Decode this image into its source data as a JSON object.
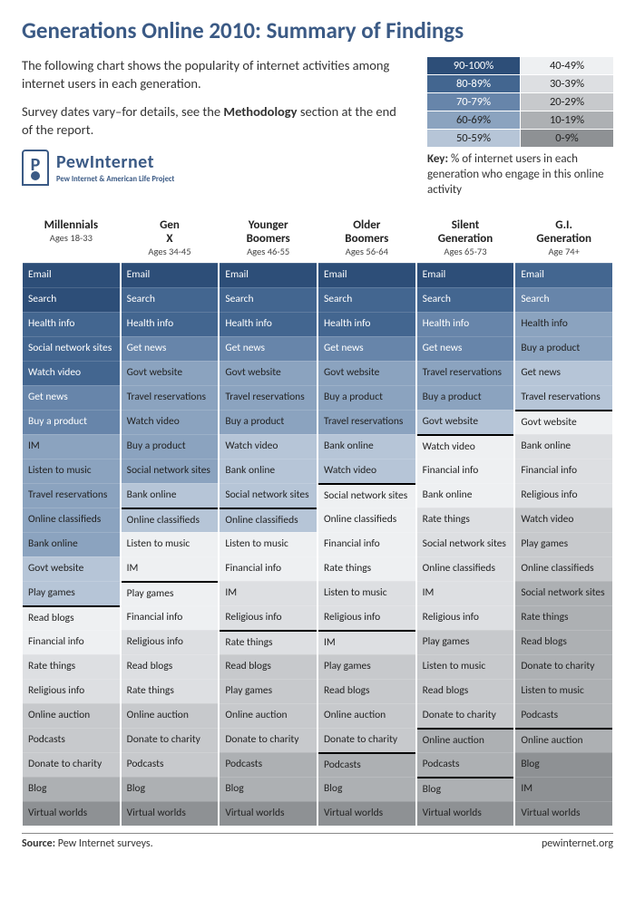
{
  "title": "Generations Online 2010: Summary of Findings",
  "intro1": "The following chart shows the popularity of internet activities among internet users in each generation.",
  "intro2a": "Survey dates vary–for details, see the ",
  "intro2b": "Methodology",
  "intro2c": " section at the end of the report.",
  "logo_main": "PewInternet",
  "logo_sub": "Pew Internet & American Life Project",
  "key_label": "Key:",
  "key_text": "% of internet users in each generation who engage in this online activity",
  "footer_source_label": "Source:",
  "footer_source": "Pew Internet surveys.",
  "footer_site": "pewinternet.org",
  "palette": {
    "b90": "#2d4e78",
    "b80": "#436690",
    "b70": "#6785aa",
    "b60": "#8ba3bf",
    "b50": "#b6c5d7",
    "g40": "#eef0f2",
    "g30": "#dddfe2",
    "g20": "#c7c9cc",
    "g10": "#adb0b3",
    "g0": "#8e9194"
  },
  "legend": [
    {
      "label": "90-100%",
      "bucket": "b90",
      "light": true
    },
    {
      "label": "40-49%",
      "bucket": "g40"
    },
    {
      "label": "80-89%",
      "bucket": "b80",
      "light": true
    },
    {
      "label": "30-39%",
      "bucket": "g30"
    },
    {
      "label": "70-79%",
      "bucket": "b70",
      "light": true
    },
    {
      "label": "20-29%",
      "bucket": "g20"
    },
    {
      "label": "60-69%",
      "bucket": "b60"
    },
    {
      "label": "10-19%",
      "bucket": "g10"
    },
    {
      "label": "50-59%",
      "bucket": "b50"
    },
    {
      "label": "0-9%",
      "bucket": "g0"
    }
  ],
  "columns": [
    {
      "name": "Millennials",
      "ages": "Ages 18-33",
      "rows": [
        {
          "t": "Email",
          "b": "b90"
        },
        {
          "t": "Search",
          "b": "b90"
        },
        {
          "t": "Health info",
          "b": "b80"
        },
        {
          "t": "Social network sites",
          "b": "b80"
        },
        {
          "t": "Watch video",
          "b": "b80"
        },
        {
          "t": "Get news",
          "b": "b70"
        },
        {
          "t": "Buy a product",
          "b": "b70"
        },
        {
          "t": "IM",
          "b": "b60"
        },
        {
          "t": "Listen to music",
          "b": "b60"
        },
        {
          "t": "Travel reservations",
          "b": "b60"
        },
        {
          "t": "Online classifieds",
          "b": "b60"
        },
        {
          "t": "Bank online",
          "b": "b60"
        },
        {
          "t": "Govt website",
          "b": "b50"
        },
        {
          "t": "Play games",
          "b": "b50"
        },
        {
          "t": "Read blogs",
          "b": "g40",
          "step": true
        },
        {
          "t": "Financial info",
          "b": "g40"
        },
        {
          "t": "Rate things",
          "b": "g30"
        },
        {
          "t": "Religious info",
          "b": "g30"
        },
        {
          "t": "Online auction",
          "b": "g20"
        },
        {
          "t": "Podcasts",
          "b": "g20"
        },
        {
          "t": "Donate to charity",
          "b": "g20"
        },
        {
          "t": "Blog",
          "b": "g10"
        },
        {
          "t": "Virtual worlds",
          "b": "g0"
        }
      ]
    },
    {
      "name": "Gen X",
      "ages": "Ages 34-45",
      "rows": [
        {
          "t": "Email",
          "b": "b90"
        },
        {
          "t": "Search",
          "b": "b80"
        },
        {
          "t": "Health info",
          "b": "b80"
        },
        {
          "t": "Get news",
          "b": "b70"
        },
        {
          "t": "Govt website",
          "b": "b60"
        },
        {
          "t": "Travel reservations",
          "b": "b60"
        },
        {
          "t": "Watch video",
          "b": "b60"
        },
        {
          "t": "Buy a product",
          "b": "b60"
        },
        {
          "t": "Social network sites",
          "b": "b60"
        },
        {
          "t": "Bank online",
          "b": "b50"
        },
        {
          "t": "Online classifieds",
          "b": "b50",
          "step": true
        },
        {
          "t": "Listen to music",
          "b": "g40"
        },
        {
          "t": "IM",
          "b": "g40"
        },
        {
          "t": "Play games",
          "b": "g40",
          "step": true
        },
        {
          "t": "Financial info",
          "b": "g40"
        },
        {
          "t": "Religious info",
          "b": "g30"
        },
        {
          "t": "Read blogs",
          "b": "g30"
        },
        {
          "t": "Rate things",
          "b": "g30"
        },
        {
          "t": "Online auction",
          "b": "g20"
        },
        {
          "t": "Donate to charity",
          "b": "g20"
        },
        {
          "t": "Podcasts",
          "b": "g20"
        },
        {
          "t": "Blog",
          "b": "g10"
        },
        {
          "t": "Virtual worlds",
          "b": "g0"
        }
      ]
    },
    {
      "name": "Younger Boomers",
      "ages": "Ages 46-55",
      "rows": [
        {
          "t": "Email",
          "b": "b90"
        },
        {
          "t": "Search",
          "b": "b80"
        },
        {
          "t": "Health info",
          "b": "b80"
        },
        {
          "t": "Get news",
          "b": "b70"
        },
        {
          "t": "Govt website",
          "b": "b60"
        },
        {
          "t": "Travel reservations",
          "b": "b60"
        },
        {
          "t": "Buy a product",
          "b": "b60"
        },
        {
          "t": "Watch video",
          "b": "b50"
        },
        {
          "t": "Bank online",
          "b": "b50"
        },
        {
          "t": "Social network sites",
          "b": "b50"
        },
        {
          "t": "Online classifieds",
          "b": "b50",
          "step": true
        },
        {
          "t": "Listen to music",
          "b": "g40"
        },
        {
          "t": "Financial info",
          "b": "g40"
        },
        {
          "t": "IM",
          "b": "g30"
        },
        {
          "t": "Religious info",
          "b": "g30"
        },
        {
          "t": "Rate things",
          "b": "g30",
          "step": true
        },
        {
          "t": "Read blogs",
          "b": "g20"
        },
        {
          "t": "Play games",
          "b": "g20"
        },
        {
          "t": "Online auction",
          "b": "g20"
        },
        {
          "t": "Donate to charity",
          "b": "g20"
        },
        {
          "t": "Podcasts",
          "b": "g10"
        },
        {
          "t": "Blog",
          "b": "g10"
        },
        {
          "t": "Virtual worlds",
          "b": "g0"
        }
      ]
    },
    {
      "name": "Older Boomers",
      "ages": "Ages 56-64",
      "rows": [
        {
          "t": "Email",
          "b": "b90"
        },
        {
          "t": "Search",
          "b": "b80"
        },
        {
          "t": "Health info",
          "b": "b80"
        },
        {
          "t": "Get news",
          "b": "b70"
        },
        {
          "t": "Govt website",
          "b": "b60"
        },
        {
          "t": "Buy a product",
          "b": "b60"
        },
        {
          "t": "Travel reservations",
          "b": "b60"
        },
        {
          "t": "Bank online",
          "b": "b50"
        },
        {
          "t": "Watch video",
          "b": "b50"
        },
        {
          "t": "Social network sites",
          "b": "g40",
          "step": true
        },
        {
          "t": "Online classifieds",
          "b": "g40"
        },
        {
          "t": "Financial info",
          "b": "g40"
        },
        {
          "t": "Rate things",
          "b": "g40"
        },
        {
          "t": "Listen to music",
          "b": "g30"
        },
        {
          "t": "Religious info",
          "b": "g30"
        },
        {
          "t": "IM",
          "b": "g30",
          "step": true
        },
        {
          "t": "Play games",
          "b": "g20"
        },
        {
          "t": "Read blogs",
          "b": "g20"
        },
        {
          "t": "Online auction",
          "b": "g20"
        },
        {
          "t": "Donate to charity",
          "b": "g20"
        },
        {
          "t": "Podcasts",
          "b": "g10",
          "step": true
        },
        {
          "t": "Blog",
          "b": "g10"
        },
        {
          "t": "Virtual worlds",
          "b": "g0"
        }
      ]
    },
    {
      "name": "Silent Generation",
      "ages": "Ages 65-73",
      "rows": [
        {
          "t": "Email",
          "b": "b90"
        },
        {
          "t": "Search",
          "b": "b80"
        },
        {
          "t": "Health info",
          "b": "b70"
        },
        {
          "t": "Get news",
          "b": "b70"
        },
        {
          "t": "Travel reservations",
          "b": "b60"
        },
        {
          "t": "Buy a product",
          "b": "b60"
        },
        {
          "t": "Govt website",
          "b": "b50"
        },
        {
          "t": "Watch video",
          "b": "g40",
          "step": true
        },
        {
          "t": "Financial info",
          "b": "g40"
        },
        {
          "t": "Bank online",
          "b": "g40"
        },
        {
          "t": "Rate things",
          "b": "g30"
        },
        {
          "t": "Social network sites",
          "b": "g30"
        },
        {
          "t": "Online classifieds",
          "b": "g30"
        },
        {
          "t": "IM",
          "b": "g30"
        },
        {
          "t": "Religious info",
          "b": "g30"
        },
        {
          "t": "Play games",
          "b": "g20"
        },
        {
          "t": "Listen to music",
          "b": "g20"
        },
        {
          "t": "Read blogs",
          "b": "g20"
        },
        {
          "t": "Donate to charity",
          "b": "g20"
        },
        {
          "t": "Online auction",
          "b": "g10",
          "step": true
        },
        {
          "t": "Podcasts",
          "b": "g10"
        },
        {
          "t": "Blog",
          "b": "g10",
          "step": true
        },
        {
          "t": "Virtual worlds",
          "b": "g0"
        }
      ]
    },
    {
      "name": "G.I. Generation",
      "ages": "Age 74+",
      "rows": [
        {
          "t": "Email",
          "b": "b80"
        },
        {
          "t": "Search",
          "b": "b70"
        },
        {
          "t": "Health info",
          "b": "b60"
        },
        {
          "t": "Buy a product",
          "b": "b60"
        },
        {
          "t": "Get news",
          "b": "b50"
        },
        {
          "t": "Travel reservations",
          "b": "b50"
        },
        {
          "t": "Govt website",
          "b": "g40",
          "step": true
        },
        {
          "t": "Bank online",
          "b": "g30"
        },
        {
          "t": "Financial info",
          "b": "g30"
        },
        {
          "t": "Religious info",
          "b": "g30"
        },
        {
          "t": "Watch video",
          "b": "g20"
        },
        {
          "t": "Play games",
          "b": "g20"
        },
        {
          "t": "Online classifieds",
          "b": "g20"
        },
        {
          "t": "Social network sites",
          "b": "g10"
        },
        {
          "t": "Rate things",
          "b": "g10"
        },
        {
          "t": "Read blogs",
          "b": "g10"
        },
        {
          "t": "Donate to charity",
          "b": "g10"
        },
        {
          "t": "Listen to music",
          "b": "g10"
        },
        {
          "t": "Podcasts",
          "b": "g10"
        },
        {
          "t": "Online auction",
          "b": "g10",
          "step": true
        },
        {
          "t": "Blog",
          "b": "g0"
        },
        {
          "t": "IM",
          "b": "g0"
        },
        {
          "t": "Virtual worlds",
          "b": "g0"
        }
      ]
    }
  ]
}
